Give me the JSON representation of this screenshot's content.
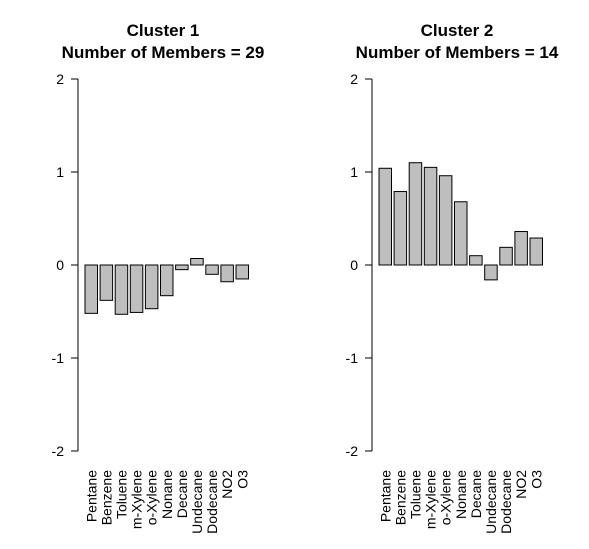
{
  "chart_data": [
    {
      "type": "bar",
      "title_line1": "Cluster 1",
      "title_line2": "Number of Members = 29",
      "categories": [
        "Pentane",
        "Benzene",
        "Toluene",
        "m-Xylene",
        "o-Xylene",
        "Nonane",
        "Decane",
        "Undecane",
        "Dodecane",
        "NO2",
        "O3"
      ],
      "values": [
        -0.52,
        -0.38,
        -0.53,
        -0.51,
        -0.47,
        -0.33,
        -0.05,
        0.07,
        -0.1,
        -0.18,
        -0.15
      ],
      "ylim": [
        -2,
        2
      ],
      "yticks": [
        "-2",
        "-1",
        "0",
        "1",
        "2"
      ],
      "bar_color": "#bebebe"
    },
    {
      "type": "bar",
      "title_line1": "Cluster 2",
      "title_line2": "Number of Members = 14",
      "categories": [
        "Pentane",
        "Benzene",
        "Toluene",
        "m-Xylene",
        "o-Xylene",
        "Nonane",
        "Decane",
        "Undecane",
        "Dodecane",
        "NO2",
        "O3"
      ],
      "values": [
        1.04,
        0.79,
        1.1,
        1.05,
        0.96,
        0.68,
        0.1,
        -0.16,
        0.19,
        0.36,
        0.29
      ],
      "ylim": [
        -2,
        2
      ],
      "yticks": [
        "-2",
        "-1",
        "0",
        "1",
        "2"
      ],
      "bar_color": "#bebebe"
    }
  ]
}
